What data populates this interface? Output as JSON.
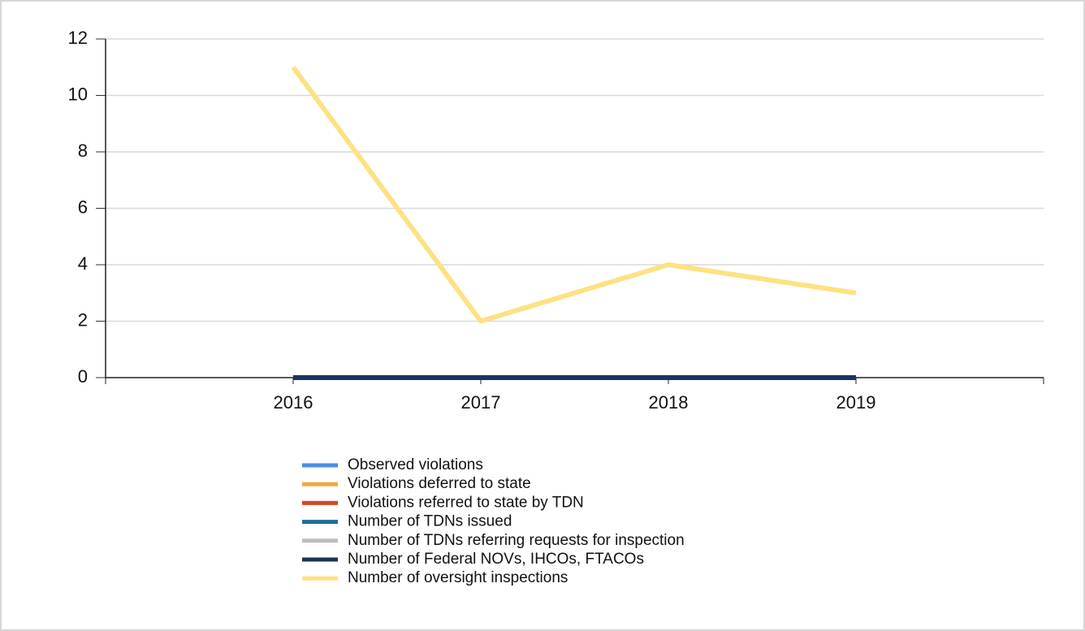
{
  "chart_data": {
    "type": "line",
    "categories": [
      "2016",
      "2017",
      "2018",
      "2019"
    ],
    "series": [
      {
        "name": "Observed violations",
        "color": "#4a8fe0",
        "values": [
          0,
          0,
          0,
          0
        ]
      },
      {
        "name": "Violations deferred to state",
        "color": "#f2a93b",
        "values": [
          0,
          0,
          0,
          0
        ]
      },
      {
        "name": "Violations referred to state by TDN",
        "color": "#d8461e",
        "values": [
          0,
          0,
          0,
          0
        ]
      },
      {
        "name": "Number of TDNs issued",
        "color": "#1b6f95",
        "values": [
          0,
          0,
          0,
          0
        ]
      },
      {
        "name": "Number of TDNs referring requests for inspection",
        "color": "#bdbdbd",
        "values": [
          0,
          0,
          0,
          0
        ]
      },
      {
        "name": "Number of Federal NOVs, IHCOs, FTACOs",
        "color": "#1c3360",
        "values": [
          0,
          0,
          0,
          0
        ]
      },
      {
        "name": "Number of oversight inspections",
        "color": "#fde283",
        "values": [
          11,
          2,
          4,
          3
        ]
      }
    ],
    "ylim": [
      0,
      12
    ],
    "yticks": [
      0,
      2,
      4,
      6,
      8,
      10,
      12
    ],
    "grid": true,
    "legend": "bottom"
  }
}
